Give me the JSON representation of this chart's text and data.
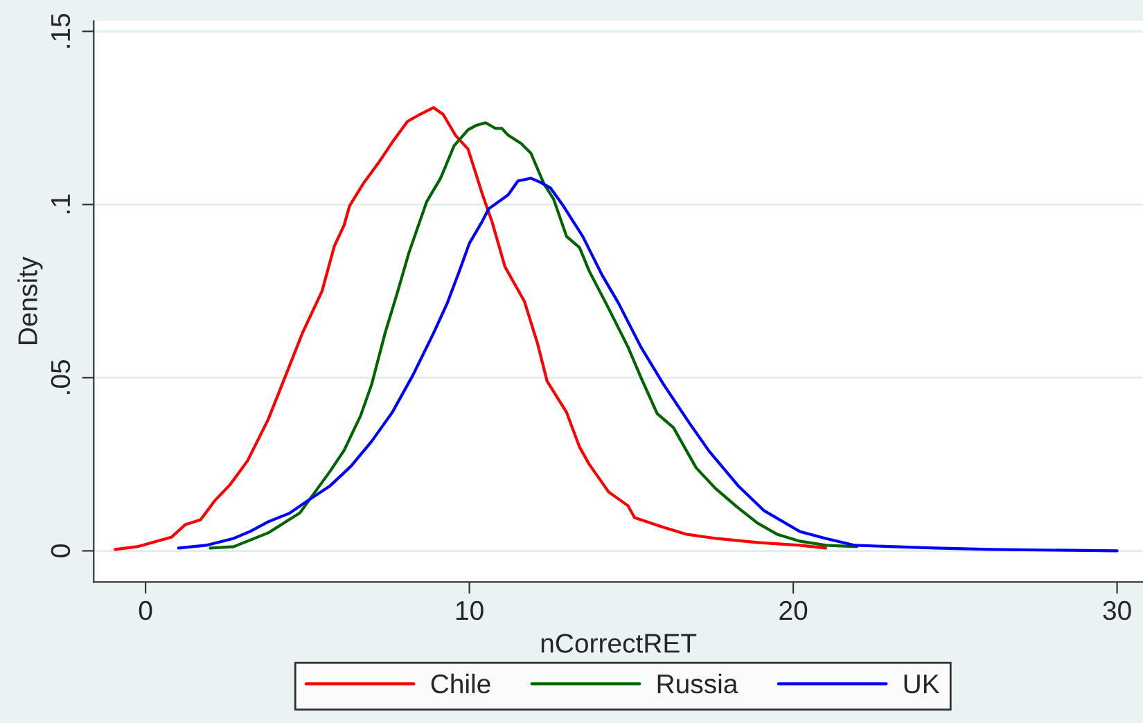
{
  "chart_data": {
    "type": "line",
    "xlabel": "nCorrectRET",
    "ylabel": "Density",
    "xlim": [
      -1.6,
      30.8
    ],
    "xticks": [
      0,
      10,
      20,
      30
    ],
    "ylim": [
      -0.009,
      0.153
    ],
    "yticks": [
      0,
      {
        "value": 0.05,
        "label": ".05"
      },
      {
        "value": 0.1,
        "label": ".1"
      },
      {
        "value": 0.15,
        "label": ".15"
      }
    ],
    "grid": "y",
    "legend": "bottom",
    "marker": "none",
    "line_style": "solid",
    "series": [
      {
        "name": "Chile",
        "color": "#ff0000",
        "x": [
          -0.94,
          -0.26,
          0.81,
          1.23,
          1.7,
          2.13,
          2.6,
          3.15,
          3.79,
          4.3,
          4.85,
          5.45,
          5.83,
          6.13,
          6.3,
          6.72,
          7.19,
          7.62,
          8.09,
          8.47,
          8.89,
          9.19,
          9.57,
          9.96,
          10.4,
          10.7,
          11.1,
          11.7,
          12.1,
          12.4,
          13.0,
          13.4,
          13.7,
          14.3,
          14.9,
          15.1,
          16.0,
          16.7,
          17.6,
          18.9,
          20.2,
          21.0
        ],
        "values": [
          0.0004,
          0.0012,
          0.004,
          0.0076,
          0.009,
          0.0144,
          0.019,
          0.026,
          0.038,
          0.05,
          0.063,
          0.075,
          0.088,
          0.094,
          0.0996,
          0.106,
          0.112,
          0.118,
          0.124,
          0.126,
          0.128,
          0.126,
          0.12,
          0.116,
          0.103,
          0.095,
          0.082,
          0.072,
          0.06,
          0.049,
          0.04,
          0.03,
          0.025,
          0.017,
          0.013,
          0.0096,
          0.0068,
          0.0048,
          0.0036,
          0.0024,
          0.0016,
          0.0008
        ]
      },
      {
        "name": "Russia",
        "color": "#006400",
        "x": [
          2.0,
          2.72,
          3.15,
          3.79,
          4.77,
          5.7,
          6.13,
          6.64,
          6.98,
          7.4,
          7.79,
          8.13,
          8.68,
          9.11,
          9.53,
          9.96,
          10.2,
          10.5,
          10.8,
          11.0,
          11.2,
          11.6,
          11.9,
          12.3,
          12.6,
          13.0,
          13.4,
          13.7,
          14.3,
          14.9,
          15.3,
          15.8,
          16.3,
          17.0,
          17.6,
          18.3,
          18.9,
          19.5,
          20.2,
          21.0,
          21.96
        ],
        "values": [
          0.0008,
          0.0012,
          0.0028,
          0.0052,
          0.011,
          0.023,
          0.029,
          0.039,
          0.048,
          0.063,
          0.075,
          0.086,
          0.1008,
          0.1076,
          0.117,
          0.1216,
          0.1228,
          0.1236,
          0.122,
          0.122,
          0.12,
          0.1176,
          0.1148,
          0.106,
          0.1016,
          0.0908,
          0.0876,
          0.0808,
          0.07,
          0.0588,
          0.05,
          0.0396,
          0.0356,
          0.024,
          0.018,
          0.0124,
          0.008,
          0.0048,
          0.0028,
          0.0016,
          0.0012
        ]
      },
      {
        "name": "UK",
        "color": "#0000ff",
        "x": [
          1.02,
          1.87,
          2.72,
          3.23,
          3.79,
          4.43,
          5.06,
          5.7,
          6.34,
          6.98,
          7.62,
          8.26,
          8.89,
          9.32,
          9.66,
          10.0,
          10.4,
          10.6,
          10.9,
          11.2,
          11.5,
          11.9,
          12.2,
          12.5,
          12.9,
          13.5,
          14.1,
          14.6,
          15.3,
          16.0,
          16.8,
          17.4,
          18.3,
          19.1,
          20.2,
          21.0,
          21.9,
          23.1,
          24.4,
          26.1,
          30.0
        ],
        "values": [
          0.0008,
          0.0016,
          0.0036,
          0.0056,
          0.0084,
          0.0108,
          0.0148,
          0.0188,
          0.0244,
          0.0316,
          0.04,
          0.0508,
          0.0628,
          0.0716,
          0.08,
          0.0888,
          0.0952,
          0.0988,
          0.1008,
          0.1028,
          0.1068,
          0.1076,
          0.1064,
          0.1048,
          0.0996,
          0.0908,
          0.0796,
          0.0716,
          0.0588,
          0.048,
          0.0368,
          0.0288,
          0.0188,
          0.0116,
          0.0056,
          0.0036,
          0.0016,
          0.0012,
          0.0008,
          0.0004,
          0.0
        ]
      }
    ]
  }
}
